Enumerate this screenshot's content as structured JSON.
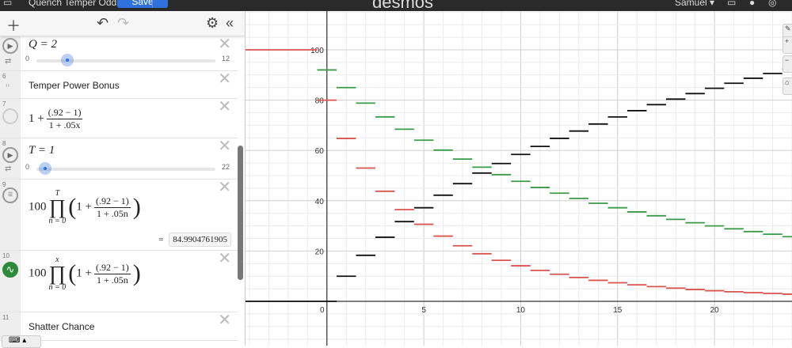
{
  "topbar": {
    "title": "Quench Temper Odds",
    "save_label": "Save",
    "logo": "desmos",
    "user": "Samuel ▾"
  },
  "toolbar": {
    "add_icon": "plus-icon",
    "undo_icon": "undo-icon",
    "redo_icon": "redo-icon",
    "settings_icon": "gear-icon",
    "collapse_icon": "double-chevron-left-icon"
  },
  "expressions": [
    {
      "id": "5",
      "type": "slider",
      "latex": "Q = 2",
      "var": "Q",
      "value": "2",
      "min": "0",
      "max": "12",
      "fraction": 0.1667
    },
    {
      "id": "6",
      "type": "note",
      "text": "Temper Power Bonus"
    },
    {
      "id": "7",
      "type": "expression",
      "prefix": "1 +",
      "num": "(.92 − 1)",
      "den": "1 + .05x"
    },
    {
      "id": "8",
      "type": "slider",
      "latex": "T = 1",
      "var": "T",
      "value": "1",
      "min": "0",
      "max": "22",
      "fraction": 0.0455
    },
    {
      "id": "9",
      "type": "expression",
      "coef": "100",
      "upper": "T",
      "lower": "n = 0",
      "inner": "1 +",
      "num": "(.92 − 1)",
      "den": "1 + .05n",
      "result": "84.9904761905"
    },
    {
      "id": "10",
      "type": "expression",
      "coef": "100",
      "upper": "x",
      "lower": "n = 0",
      "inner": "1 +",
      "num": "(.92 − 1)",
      "den": "1 + .05n",
      "color": "#2d8a3a"
    },
    {
      "id": "11",
      "type": "note",
      "text": "Shatter Chance"
    }
  ],
  "graph": {
    "xlim": [
      -4.2,
      24
    ],
    "ylim": [
      -17.6,
      115.4
    ],
    "x_ticks": [
      "0",
      "5",
      "10",
      "15",
      "20"
    ],
    "y_ticks": [
      "20",
      "40",
      "60",
      "80",
      "100"
    ],
    "grid": true,
    "series": [
      {
        "color": "#d9534f",
        "start": -1,
        "values": [
          100,
          80,
          64.76,
          52.99,
          43.77,
          36.48,
          30.64,
          25.93,
          22.09,
          18.93,
          16.32,
          14.14,
          12.32,
          10.78,
          9.47,
          8.36,
          7.4,
          6.58,
          5.87,
          5.25,
          4.71,
          4.24,
          3.83,
          3.46,
          3.14,
          2.85
        ]
      },
      {
        "color": "#3a9a48",
        "start": 0,
        "values": [
          92,
          84.99,
          78.81,
          73.33,
          68.44,
          64.06,
          60.12,
          56.56,
          53.33,
          50.38,
          47.73,
          45.27,
          43.0,
          40.92,
          38.99,
          37.21,
          35.56,
          34.02,
          32.59,
          31.25,
          30.0,
          28.83,
          27.73,
          26.7,
          25.7
        ]
      },
      {
        "color": "#111111",
        "start": 0,
        "values": [
          0,
          10,
          18.3,
          25.5,
          31.7,
          37.2,
          42.2,
          46.8,
          51,
          54.8,
          58.4,
          61.6,
          64.8,
          67.7,
          70.5,
          73.3,
          75.8,
          78.2,
          80.4,
          82.6,
          84.7,
          86.7,
          88.7,
          90.6,
          92.3
        ]
      }
    ]
  }
}
